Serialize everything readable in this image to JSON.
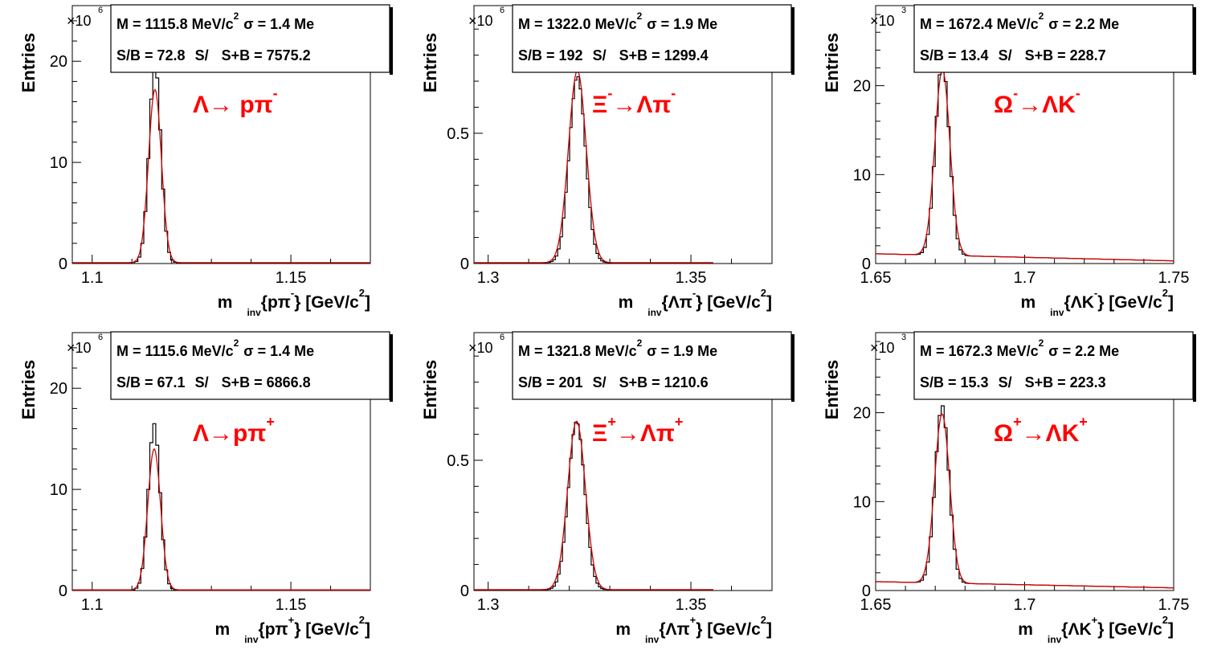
{
  "chart_data": [
    {
      "type": "histogram",
      "ylabel": "Entries",
      "exponent_label": "×10",
      "exponent": "6",
      "xlabel": "m_inv{pπ⁻} [GeV/c²]",
      "xlabel_main": "m",
      "xlabel_sub": "inv",
      "xlabel_rest": "{pπ",
      "xlabel_sup": "-",
      "xlabel_unit": "} [GeV/c",
      "xlabel_unit_sup": "2",
      "xlabel_close": "]",
      "xlim": [
        1.095,
        1.17
      ],
      "ylim": [
        0,
        25.5
      ],
      "xticks": [
        "1.1",
        "1.15"
      ],
      "xtick_values": [
        1.1,
        1.15
      ],
      "yticks": [
        "0",
        "10",
        "20"
      ],
      "ytick_values": [
        0,
        10,
        20
      ],
      "annotation_main": "Λ→ pπ",
      "annotation_sup": "-",
      "stats_line1": "M = 1115.8 MeV/c",
      "stats_line1_sup": "2",
      "stats_line1b": "σ = 1.4 Me",
      "stats_line2a": "S/B = 72.8",
      "stats_line2b": "S/",
      "stats_line2c": "S+B = 7575.2",
      "peak": 1.1158,
      "sigma": 0.0014,
      "peak_height": 17.2,
      "hist_max": 19.8,
      "bkg": 0.08,
      "bkg_slope": 0,
      "data_end": 1.17
    },
    {
      "type": "histogram",
      "ylabel": "Entries",
      "exponent_label": "×10",
      "exponent": "6",
      "xlabel_main": "m",
      "xlabel_sub": "inv",
      "xlabel_rest": "{Λπ",
      "xlabel_sup": "-",
      "xlabel_unit": "} [GeV/c",
      "xlabel_unit_sup": "2",
      "xlabel_close": "]",
      "xlim": [
        1.2965,
        1.37
      ],
      "ylim": [
        0,
        0.99
      ],
      "xticks": [
        "1.3",
        "1.35"
      ],
      "xtick_values": [
        1.3,
        1.35
      ],
      "yticks": [
        "0",
        "0.5"
      ],
      "ytick_values": [
        0,
        0.5
      ],
      "annotation_main": "Ξ",
      "annotation_sup": "-",
      "annotation_main2": "→Λπ",
      "annotation_sup2": "-",
      "stats_line1": "M = 1322.0 MeV/c",
      "stats_line1_sup": "2",
      "stats_line1b": "σ = 1.9 Me",
      "stats_line2a": "S/B =  192",
      "stats_line2b": "S/",
      "stats_line2c": "S+B = 1299.4",
      "peak": 1.322,
      "sigma": 0.0019,
      "peak_height": 0.74,
      "hist_max": 0.72,
      "bkg": 0.003,
      "bkg_slope": 0,
      "data_end": 1.3555
    },
    {
      "type": "histogram",
      "ylabel": "Entries",
      "exponent_label": "×10",
      "exponent": "3",
      "xlabel_main": "m",
      "xlabel_sub": "inv",
      "xlabel_rest": "{ΛK",
      "xlabel_sup": "-",
      "xlabel_unit": "} [GeV/c",
      "xlabel_unit_sup": "2",
      "xlabel_close": "]",
      "xlim": [
        1.65,
        1.75
      ],
      "ylim": [
        0,
        29
      ],
      "xticks": [
        "1.65",
        "1.7",
        "1.75"
      ],
      "xtick_values": [
        1.65,
        1.7,
        1.75
      ],
      "yticks": [
        "0",
        "10",
        "20"
      ],
      "ytick_values": [
        0,
        10,
        20
      ],
      "annotation_main": "Ω",
      "annotation_sup": "-",
      "annotation_main2": "→ΛK",
      "annotation_sup2": "-",
      "stats_line1": "M = 1672.4 MeV/c",
      "stats_line1_sup": "2",
      "stats_line1b": "σ = 2.2 Me",
      "stats_line2a": "S/B = 13.4",
      "stats_line2b": "S/",
      "stats_line2c": "S+B = 228.7",
      "peak": 1.6724,
      "sigma": 0.0022,
      "peak_height": 22.0,
      "hist_max": 23.0,
      "bkg": 1.1,
      "bkg_slope": -0.8,
      "data_end": 1.75
    },
    {
      "type": "histogram",
      "ylabel": "Entries",
      "exponent_label": "×10",
      "exponent": "6",
      "xlabel_main": "m",
      "xlabel_sub": "inv",
      "xlabel_rest": "{pπ",
      "xlabel_sup": "+",
      "xlabel_unit": "} [GeV/c",
      "xlabel_unit_sup": "2",
      "xlabel_close": "]",
      "xlim": [
        1.095,
        1.17
      ],
      "ylim": [
        0,
        25.5
      ],
      "xticks": [
        "1.1",
        "1.15"
      ],
      "xtick_values": [
        1.1,
        1.15
      ],
      "yticks": [
        "0",
        "10",
        "20"
      ],
      "ytick_values": [
        0,
        10,
        20
      ],
      "annotation_main": "Λ→pπ",
      "annotation_sup": "+",
      "stats_line1": "M = 1115.6 MeV/c",
      "stats_line1_sup": "2",
      "stats_line1b": "σ = 1.4 Me",
      "stats_line2a": "S/B = 67.1",
      "stats_line2b": "S/",
      "stats_line2c": "S+B = 6866.8",
      "peak": 1.1156,
      "sigma": 0.0014,
      "peak_height": 14.0,
      "hist_max": 16.5,
      "bkg": 0.06,
      "bkg_slope": 0,
      "data_end": 1.17
    },
    {
      "type": "histogram",
      "ylabel": "Entries",
      "exponent_label": "×10",
      "exponent": "6",
      "xlabel_main": "m",
      "xlabel_sub": "inv",
      "xlabel_rest": "{Λπ",
      "xlabel_sup": "+",
      "xlabel_unit": "} [GeV/c",
      "xlabel_unit_sup": "2",
      "xlabel_close": "]",
      "xlim": [
        1.2965,
        1.37
      ],
      "ylim": [
        0,
        0.99
      ],
      "xticks": [
        "1.3",
        "1.35"
      ],
      "xtick_values": [
        1.3,
        1.35
      ],
      "yticks": [
        "0",
        "0.5"
      ],
      "ytick_values": [
        0,
        0.5
      ],
      "annotation_main": "Ξ",
      "annotation_sup": "+",
      "annotation_main2": "→Λπ",
      "annotation_sup2": "+",
      "stats_line1": "M = 1321.8 MeV/c",
      "stats_line1_sup": "2",
      "stats_line1b": "σ = 1.9 Me",
      "stats_line2a": "S/B =  201",
      "stats_line2b": "S/",
      "stats_line2c": "S+B = 1210.6",
      "peak": 1.3218,
      "sigma": 0.0019,
      "peak_height": 0.65,
      "hist_max": 0.65,
      "bkg": 0.003,
      "bkg_slope": 0,
      "data_end": 1.3555
    },
    {
      "type": "histogram",
      "ylabel": "Entries",
      "exponent_label": "×10",
      "exponent": "3",
      "xlabel_main": "m",
      "xlabel_sub": "inv",
      "xlabel_rest": "{ΛK",
      "xlabel_sup": "+",
      "xlabel_unit": "} [GeV/c",
      "xlabel_unit_sup": "2",
      "xlabel_close": "]",
      "xlim": [
        1.65,
        1.75
      ],
      "ylim": [
        0,
        29
      ],
      "xticks": [
        "1.65",
        "1.7",
        "1.75"
      ],
      "xtick_values": [
        1.65,
        1.7,
        1.75
      ],
      "yticks": [
        "0",
        "10",
        "20"
      ],
      "ytick_values": [
        0,
        10,
        20
      ],
      "annotation_main": "Ω",
      "annotation_sup": "+",
      "annotation_main2": "→ΛK",
      "annotation_sup2": "+",
      "stats_line1": "M = 1672.3 MeV/c",
      "stats_line1_sup": "2",
      "stats_line1b": "σ = 2.2 Me",
      "stats_line2a": "S/B = 15.3",
      "stats_line2b": "S/",
      "stats_line2c": "S+B = 223.3",
      "peak": 1.6723,
      "sigma": 0.0022,
      "peak_height": 20.0,
      "hist_max": 21.0,
      "bkg": 1.0,
      "bkg_slope": -0.7,
      "data_end": 1.75
    }
  ],
  "colors": {
    "histogram": "#000000",
    "fit": "#d40000",
    "annotation": "#ff0000",
    "axis": "#000000",
    "background": "#ffffff"
  }
}
